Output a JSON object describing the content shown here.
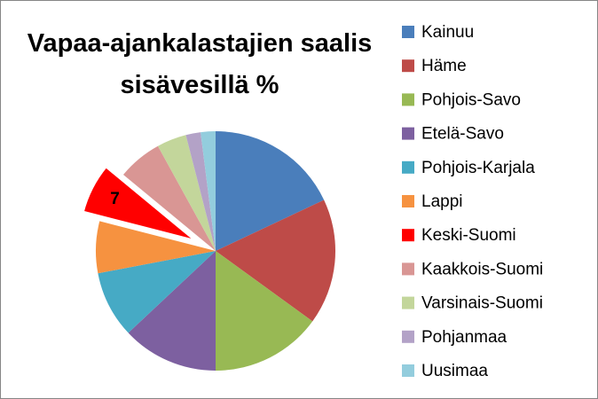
{
  "chart_data": {
    "type": "pie",
    "title": "Vapaa-ajankalastajien saalis sisävesillä %",
    "categories": [
      "Kainuu",
      "Häme",
      "Pohjois-Savo",
      "Etelä-Savo",
      "Pohjois-Karjala",
      "Lappi",
      "Keski-Suomi",
      "Kaakkois-Suomi",
      "Varsinais-Suomi",
      "Pohjanmaa",
      "Uusimaa"
    ],
    "values": [
      18,
      17,
      15,
      13,
      9,
      7,
      7,
      6,
      4,
      2,
      2
    ],
    "colors": [
      "#4a7ebb",
      "#be4b48",
      "#98b954",
      "#7d60a0",
      "#46aac5",
      "#f69240",
      "#ff0000",
      "#d99694",
      "#c3d69b",
      "#b3a2c7",
      "#93cddd"
    ],
    "exploded": [
      6
    ],
    "legend": "right"
  }
}
